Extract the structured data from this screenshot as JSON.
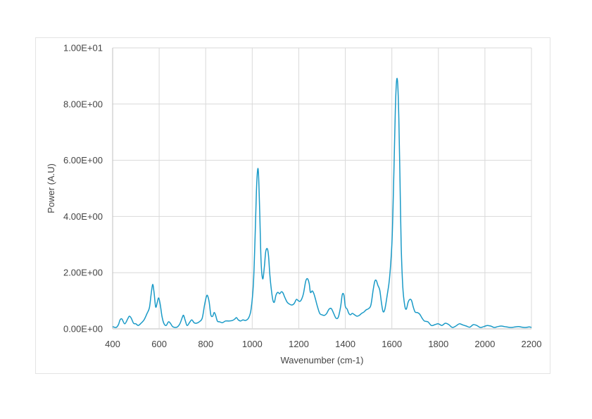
{
  "chart_data": {
    "type": "line",
    "title": "",
    "xlabel": "Wavenumber (cm-1)",
    "ylabel": "Power (A.U)",
    "xlim": [
      400,
      2200
    ],
    "ylim": [
      0,
      10
    ],
    "x_ticks": [
      400,
      600,
      800,
      1000,
      1200,
      1400,
      1600,
      1800,
      2000,
      2200
    ],
    "x_tick_labels": [
      "400",
      "600",
      "800",
      "1000",
      "1200",
      "1400",
      "1600",
      "1800",
      "2000",
      "2200"
    ],
    "y_ticks": [
      0,
      2,
      4,
      6,
      8,
      10
    ],
    "y_tick_labels": [
      "0.00E+00",
      "2.00E+00",
      "4.00E+00",
      "6.00E+00",
      "8.00E+00",
      "1.00E+01"
    ],
    "grid": "vertical and horizontal",
    "legend": "none",
    "colors": {
      "series": "#1a9ac7",
      "grid": "#d9d9d9",
      "text": "#444444"
    },
    "series": [
      {
        "x": [
          400,
          415,
          425,
          432,
          440,
          452,
          465,
          472,
          480,
          490,
          500,
          510,
          522,
          535,
          548,
          558,
          565,
          572,
          578,
          585,
          592,
          598,
          605,
          612,
          620,
          630,
          640,
          648,
          658,
          670,
          680,
          690,
          700,
          705,
          712,
          720,
          730,
          740,
          750,
          760,
          772,
          785,
          795,
          803,
          808,
          815,
          822,
          830,
          836,
          842,
          850,
          860,
          872,
          885,
          900,
          915,
          925,
          932,
          940,
          950,
          960,
          972,
          985,
          995,
          1005,
          1012,
          1018,
          1023,
          1027,
          1032,
          1038,
          1045,
          1052,
          1058,
          1065,
          1070,
          1075,
          1080,
          1088,
          1095,
          1102,
          1110,
          1118,
          1125,
          1132,
          1140,
          1150,
          1160,
          1170,
          1180,
          1190,
          1198,
          1205,
          1212,
          1220,
          1230,
          1238,
          1245,
          1250,
          1258,
          1265,
          1272,
          1280,
          1290,
          1300,
          1310,
          1320,
          1330,
          1340,
          1350,
          1360,
          1370,
          1380,
          1387,
          1394,
          1400,
          1408,
          1415,
          1422,
          1430,
          1440,
          1450,
          1460,
          1470,
          1480,
          1490,
          1500,
          1510,
          1520,
          1527,
          1533,
          1540,
          1548,
          1555,
          1562,
          1570,
          1580,
          1590,
          1600,
          1605,
          1610,
          1615,
          1620,
          1625,
          1630,
          1635,
          1640,
          1647,
          1655,
          1662,
          1670,
          1678,
          1685,
          1692,
          1700,
          1710,
          1720,
          1730,
          1740,
          1755,
          1770,
          1785,
          1800,
          1815,
          1830,
          1845,
          1860,
          1875,
          1890,
          1905,
          1920,
          1935,
          1950,
          1965,
          1980,
          1995,
          2010,
          2025,
          2040,
          2055,
          2070,
          2085,
          2100,
          2115,
          2130,
          2145,
          2160,
          2175,
          2190,
          2200
        ],
        "y": [
          0.08,
          0.05,
          0.15,
          0.32,
          0.35,
          0.18,
          0.36,
          0.45,
          0.38,
          0.2,
          0.18,
          0.12,
          0.2,
          0.32,
          0.55,
          0.75,
          1.2,
          1.58,
          1.3,
          0.78,
          0.95,
          1.1,
          0.85,
          0.45,
          0.2,
          0.12,
          0.25,
          0.2,
          0.08,
          0.05,
          0.08,
          0.2,
          0.42,
          0.48,
          0.3,
          0.12,
          0.22,
          0.32,
          0.22,
          0.2,
          0.25,
          0.38,
          0.85,
          1.15,
          1.18,
          0.95,
          0.5,
          0.45,
          0.58,
          0.5,
          0.28,
          0.25,
          0.22,
          0.28,
          0.28,
          0.3,
          0.35,
          0.4,
          0.32,
          0.28,
          0.32,
          0.3,
          0.4,
          0.7,
          1.6,
          3.2,
          4.9,
          5.65,
          5.5,
          4.2,
          2.4,
          1.78,
          2.2,
          2.75,
          2.85,
          2.6,
          2.0,
          1.55,
          1.05,
          0.95,
          1.2,
          1.3,
          1.25,
          1.32,
          1.28,
          1.12,
          0.95,
          0.88,
          0.85,
          0.9,
          1.05,
          1.0,
          0.98,
          1.05,
          1.25,
          1.7,
          1.78,
          1.6,
          1.3,
          1.35,
          1.25,
          1.05,
          0.8,
          0.55,
          0.5,
          0.48,
          0.55,
          0.7,
          0.72,
          0.55,
          0.38,
          0.42,
          0.8,
          1.22,
          1.2,
          0.8,
          0.7,
          0.55,
          0.5,
          0.55,
          0.5,
          0.45,
          0.48,
          0.55,
          0.6,
          0.68,
          0.72,
          0.85,
          1.4,
          1.7,
          1.72,
          1.55,
          1.38,
          0.95,
          0.62,
          0.7,
          1.2,
          1.8,
          3.0,
          4.3,
          6.0,
          7.8,
          8.8,
          8.75,
          7.5,
          5.3,
          3.0,
          1.5,
          0.85,
          0.7,
          0.95,
          1.05,
          1.0,
          0.78,
          0.6,
          0.58,
          0.52,
          0.38,
          0.28,
          0.25,
          0.12,
          0.15,
          0.18,
          0.12,
          0.2,
          0.15,
          0.05,
          0.1,
          0.18,
          0.14,
          0.1,
          0.06,
          0.15,
          0.12,
          0.05,
          0.08,
          0.12,
          0.1,
          0.05,
          0.08,
          0.1,
          0.08,
          0.06,
          0.05,
          0.07,
          0.08,
          0.06,
          0.05,
          0.07,
          0.05
        ]
      }
    ]
  }
}
